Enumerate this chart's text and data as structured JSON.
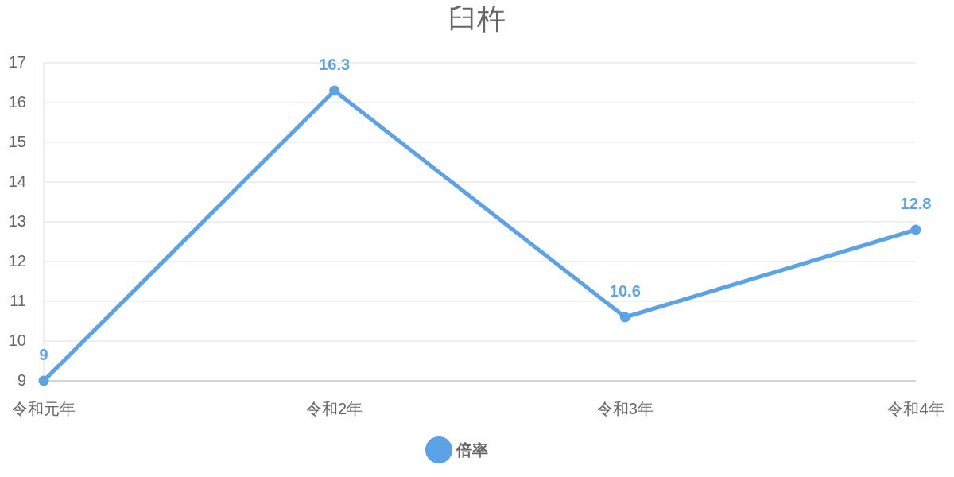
{
  "chart_data": {
    "type": "line",
    "title": "臼杵",
    "categories": [
      "令和元年",
      "令和2年",
      "令和3年",
      "令和4年"
    ],
    "series": [
      {
        "name": "倍率",
        "color": "#5ba3e6",
        "values": [
          9,
          16.3,
          10.6,
          12.8
        ]
      }
    ],
    "ylim": [
      9,
      17
    ],
    "yticks": [
      9,
      10,
      11,
      12,
      13,
      14,
      15,
      16,
      17
    ],
    "grid": "y",
    "legend": "bottom",
    "data_labels": true,
    "marker": "circle",
    "line_style": "solid"
  }
}
